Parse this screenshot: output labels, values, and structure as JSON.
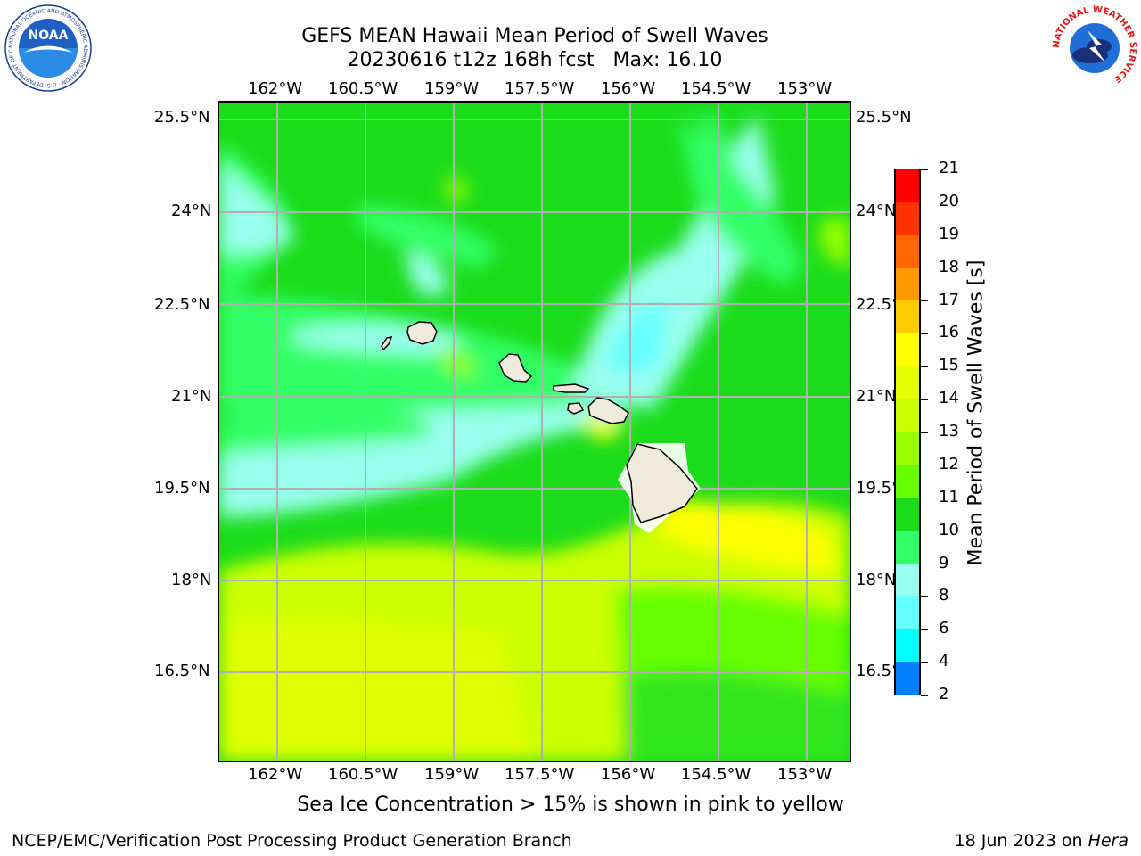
{
  "header": {
    "title_line1": "GEFS MEAN Hawaii Mean Period of Swell Waves",
    "title_line2": "20230616 t12z 168h fcst",
    "max_label": "Max: 16.10"
  },
  "logos": {
    "noaa": {
      "text": "NOAA",
      "ring_text": "NATIONAL OCEANIC AND ATMOSPHERIC ADMINISTRATION · U.S. DEPARTMENT OF COMMERCE"
    },
    "nws": {
      "ring_text": "NATIONAL WEATHER SERVICE"
    }
  },
  "map": {
    "lon_labels": [
      "162°W",
      "160.5°W",
      "159°W",
      "157.5°W",
      "156°W",
      "154.5°W",
      "153°W"
    ],
    "lat_labels": [
      "25.5°N",
      "24°N",
      "22.5°N",
      "21°N",
      "19.5°N",
      "18°N",
      "16.5°N"
    ],
    "colors": {
      "land": "#efebdc",
      "coast": "#000000",
      "grid": "#b0b0b0"
    }
  },
  "colorbar": {
    "title": "Mean Period of Swell Waves [s]",
    "ticks": [
      "21",
      "20",
      "19",
      "18",
      "17",
      "16",
      "15",
      "14",
      "13",
      "12",
      "11",
      "10",
      "9",
      "8",
      "6",
      "4",
      "2"
    ],
    "colors": [
      "#ff0000",
      "#ff3300",
      "#ff6600",
      "#ff9900",
      "#ffcc00",
      "#ffff00",
      "#e6ff00",
      "#ccff00",
      "#99ff00",
      "#66ff00",
      "#1adc1a",
      "#33ff66",
      "#99ffee",
      "#66ffff",
      "#00ffff",
      "#0080ff",
      "#0000ff"
    ]
  },
  "notes": {
    "sea_ice": "Sea Ice Concentration > 15% is shown in pink to yellow"
  },
  "footer": {
    "left": "NCEP/EMC/Verification Post Processing Product Generation Branch",
    "date": "18 Jun 2023 on",
    "machine": "Hera"
  }
}
